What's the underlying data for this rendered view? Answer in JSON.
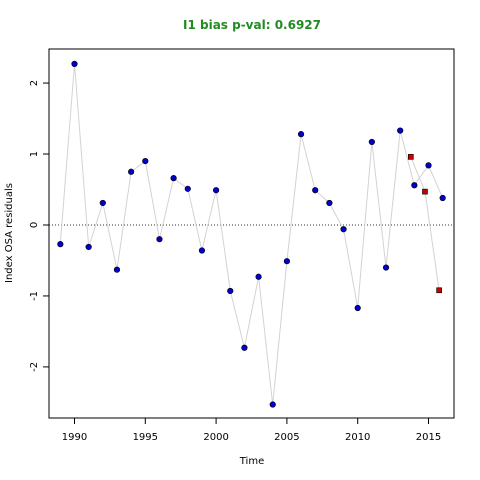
{
  "chart_data": {
    "type": "scatter",
    "title": "I1 bias p-val: 0.6927",
    "title_color": "#228B22",
    "xlabel": "Time",
    "ylabel": "Index OSA residuals",
    "xlim": [
      1988.2,
      2016.8
    ],
    "ylim": [
      -2.72,
      2.48
    ],
    "x_ticks": [
      1990,
      1995,
      2000,
      2005,
      2010,
      2015
    ],
    "y_ticks": [
      -2,
      -1,
      0,
      1,
      2
    ],
    "reference_line": {
      "y": 0,
      "style": "dotted"
    },
    "grid": false,
    "series": [
      {
        "color": "#0000CD",
        "line_color": "#d3d3d3",
        "marker": "circle",
        "x": [
          1989,
          1990,
          1991,
          1992,
          1993,
          1994,
          1995,
          1996,
          1997,
          1998,
          1999,
          2000,
          2001,
          2002,
          2003,
          2004,
          2005,
          2006,
          2007,
          2008,
          2009,
          2010,
          2011,
          2012,
          2013,
          2014,
          2015,
          2016
        ],
        "y": [
          -0.27,
          2.27,
          -0.31,
          0.31,
          -0.63,
          0.75,
          0.9,
          -0.2,
          0.66,
          0.51,
          -0.36,
          0.49,
          -0.93,
          -1.73,
          -0.73,
          -2.53,
          -0.51,
          1.28,
          0.49,
          0.31,
          -0.06,
          -1.17,
          1.17,
          -0.6,
          1.33,
          0.56,
          0.84,
          0.38
        ]
      },
      {
        "color": "#CD0000",
        "line_color": "#d3d3d3",
        "marker": "square",
        "x": [
          2013.75,
          2014.75,
          2015.75
        ],
        "y": [
          0.96,
          0.47,
          -0.92
        ]
      }
    ]
  }
}
